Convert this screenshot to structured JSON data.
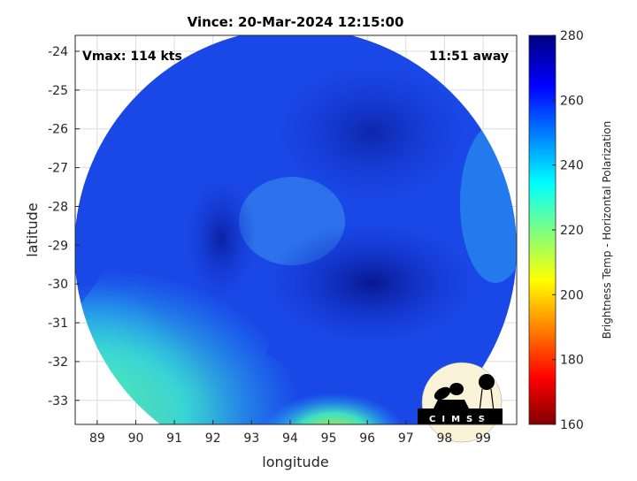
{
  "chart_data": {
    "type": "heatmap",
    "title": "Vince: 20-Mar-2024 12:15:00",
    "xlabel": "longitude",
    "ylabel": "latitude",
    "xlim": [
      88.43,
      99.87
    ],
    "ylim": [
      -33.62,
      -23.59
    ],
    "x_ticks": [
      89,
      90,
      91,
      92,
      93,
      94,
      95,
      96,
      97,
      98,
      99
    ],
    "y_ticks": [
      -24,
      -25,
      -26,
      -27,
      -28,
      -29,
      -30,
      -31,
      -32,
      -33
    ],
    "grid": true,
    "annotations": {
      "vmax": "Vmax: 114 kts",
      "time_away": "11:51 away"
    },
    "colorbar": {
      "label": "Brightness Temp - Horizontal Polarization",
      "range": [
        160,
        280
      ],
      "ticks": [
        160,
        180,
        200,
        220,
        240,
        260,
        280
      ],
      "colormap": "jet",
      "placement": "right"
    },
    "colors": {
      "dominant": "#1a3fe0",
      "cold_core": "#0a1a9a",
      "warm_edge": "#30d8e8",
      "land_green": "#7ee070"
    }
  },
  "logo": {
    "text": "CIMSS"
  }
}
